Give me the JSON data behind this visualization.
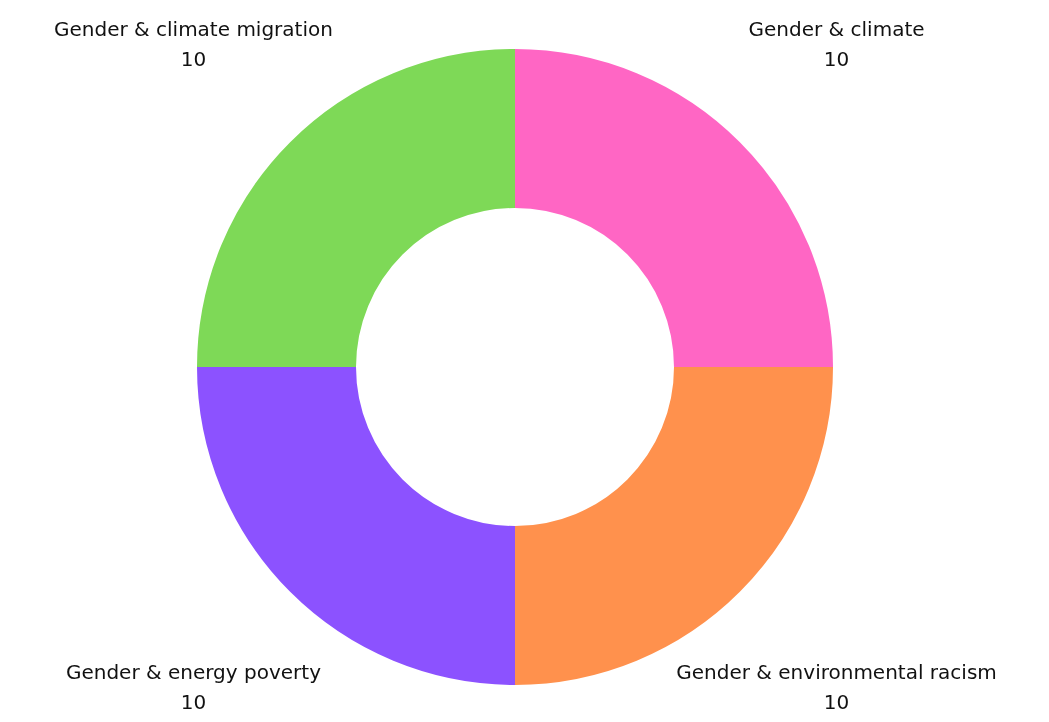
{
  "chart_data": {
    "type": "donut",
    "categories": [
      "Gender & climate",
      "Gender & environmental racism",
      "Gender & energy poverty",
      "Gender & climate migration"
    ],
    "values": [
      10,
      10,
      10,
      10
    ],
    "colors": [
      "#ff66c4",
      "#ff914d",
      "#8c52ff",
      "#7ed957"
    ],
    "data_labels": true,
    "legend": false
  }
}
